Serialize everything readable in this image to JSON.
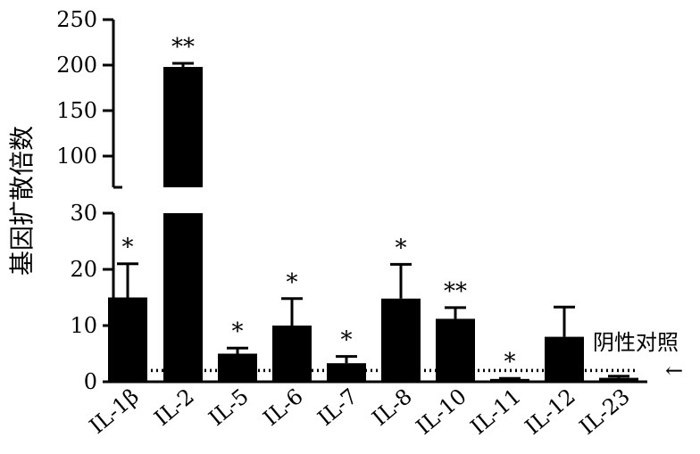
{
  "chart_data": {
    "type": "bar",
    "ylabel": "基因扩散倍数",
    "categories": [
      "IL-1β",
      "IL-2",
      "IL-5",
      "IL-6",
      "IL-7",
      "IL-8",
      "IL-10",
      "IL-11",
      "IL-12",
      "IL-23"
    ],
    "values": [
      15,
      198,
      5,
      10,
      3.3,
      14.8,
      11.2,
      0.5,
      8.0,
      0.7
    ],
    "errors": [
      6,
      4,
      1,
      4.8,
      1.2,
      6.1,
      2,
      0.1,
      5.3,
      0.3
    ],
    "significance": [
      "*",
      "**",
      "*",
      "*",
      "*",
      "*",
      "**",
      "*",
      "",
      ""
    ],
    "axis_break": true,
    "lower_ylim": [
      0,
      30
    ],
    "upper_ylim": [
      70,
      250
    ],
    "lower_ticks": [
      "0",
      "10",
      "20",
      "30"
    ],
    "upper_ticks": [
      "100",
      "150",
      "200",
      "250"
    ],
    "reference_line": {
      "label": "阴性对照",
      "value": 2,
      "style": "dotted",
      "arrow": "←"
    }
  }
}
